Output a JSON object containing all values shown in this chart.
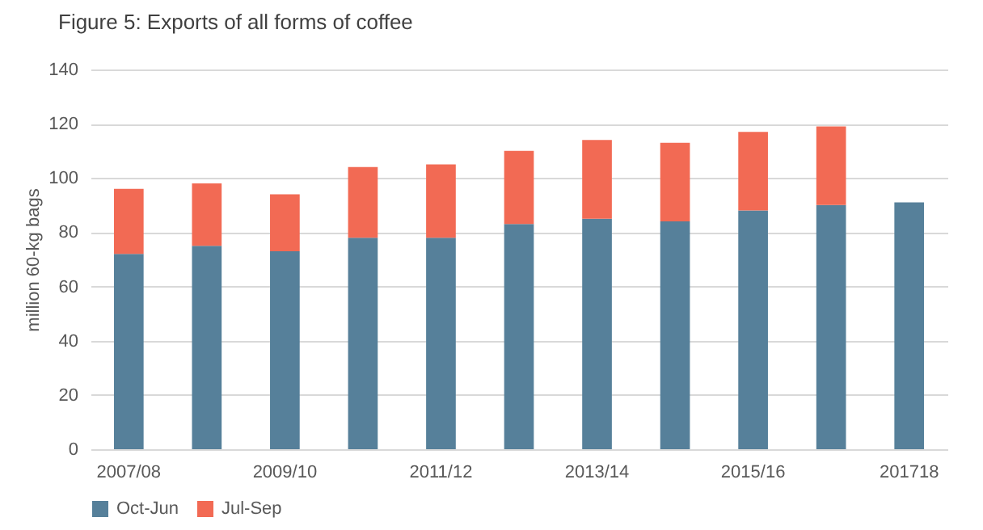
{
  "chart_data": {
    "type": "bar",
    "title": "Figure 5: Exports of all forms of coffee",
    "ylabel": "million 60-kg bags",
    "categories": [
      "2007/08",
      null,
      "2009/10",
      null,
      "2011/12",
      null,
      "2013/14",
      null,
      "2015/16",
      null,
      "201718"
    ],
    "stacked": true,
    "series": [
      {
        "name": "Oct-Jun",
        "color": "#56809a",
        "values": [
          72,
          75,
          73,
          78,
          78,
          83,
          85,
          84,
          88,
          90,
          91
        ]
      },
      {
        "name": "Jul-Sep",
        "color": "#f26a54",
        "values": [
          24,
          23,
          21,
          26,
          27,
          27,
          29,
          29,
          29,
          29,
          null
        ]
      }
    ],
    "ylim": [
      0,
      140
    ],
    "yticks": [
      0,
      20,
      40,
      60,
      80,
      100,
      120,
      140
    ],
    "grid": "y",
    "legend": "bottom"
  }
}
